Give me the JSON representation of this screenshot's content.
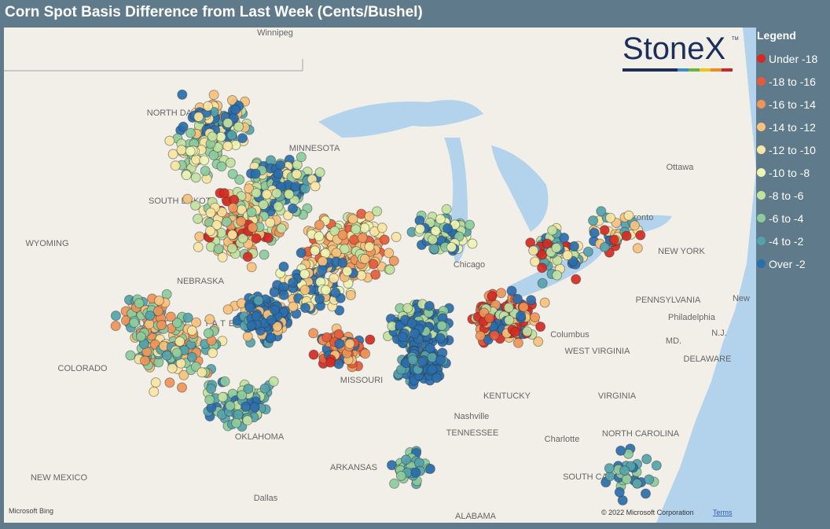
{
  "header": {
    "title": "Corn Spot Basis Difference from Last Week (Cents/Bushel)"
  },
  "logo": {
    "text": "StoneX",
    "mark": "TM"
  },
  "legend": {
    "title": "Legend",
    "items": [
      {
        "label": "Under -18",
        "color": "#d42a22"
      },
      {
        "label": "-18 to -16",
        "color": "#e65a3a"
      },
      {
        "label": "-16 to -14",
        "color": "#f09458"
      },
      {
        "label": "-14 to -12",
        "color": "#f7c27c"
      },
      {
        "label": "-12 to -10",
        "color": "#f9e6a2"
      },
      {
        "label": "-10 to -8",
        "color": "#eef5b4"
      },
      {
        "label": "-8 to -6",
        "color": "#c2e2a0"
      },
      {
        "label": "-6 to -4",
        "color": "#8ccb9c"
      },
      {
        "label": "-4 to -2",
        "color": "#55a3aa"
      },
      {
        "label": "Over -2",
        "color": "#2a6ead"
      }
    ]
  },
  "map": {
    "labels": [
      "Winnipeg",
      "NORTH DAKOTA",
      "MINNESOTA",
      "SOUTH DAKOTA",
      "WYOMING",
      "NEBRASKA",
      "UNITED STATES",
      "COLORADO",
      "MISSOURI",
      "OKLAHOMA",
      "NEW MEXICO",
      "ARKANSAS",
      "Dallas",
      "ALABAMA",
      "TENNESSEE",
      "Nashville",
      "KENTUCKY",
      "WEST VIRGINIA",
      "VIRGINIA",
      "NORTH CAROLINA",
      "SOUTH CAROLINA",
      "Charlotte",
      "PENNSYLVANIA",
      "Philadelphia",
      "NEW YORK",
      "Toronto",
      "Ottawa",
      "MD.",
      "DELAWARE",
      "N.J.",
      "Columbus",
      "Chicago",
      "New"
    ],
    "attribution": {
      "provider": "Microsoft Bing",
      "copyright": "© 2022 Microsoft Corporation",
      "terms": "Terms"
    }
  }
}
